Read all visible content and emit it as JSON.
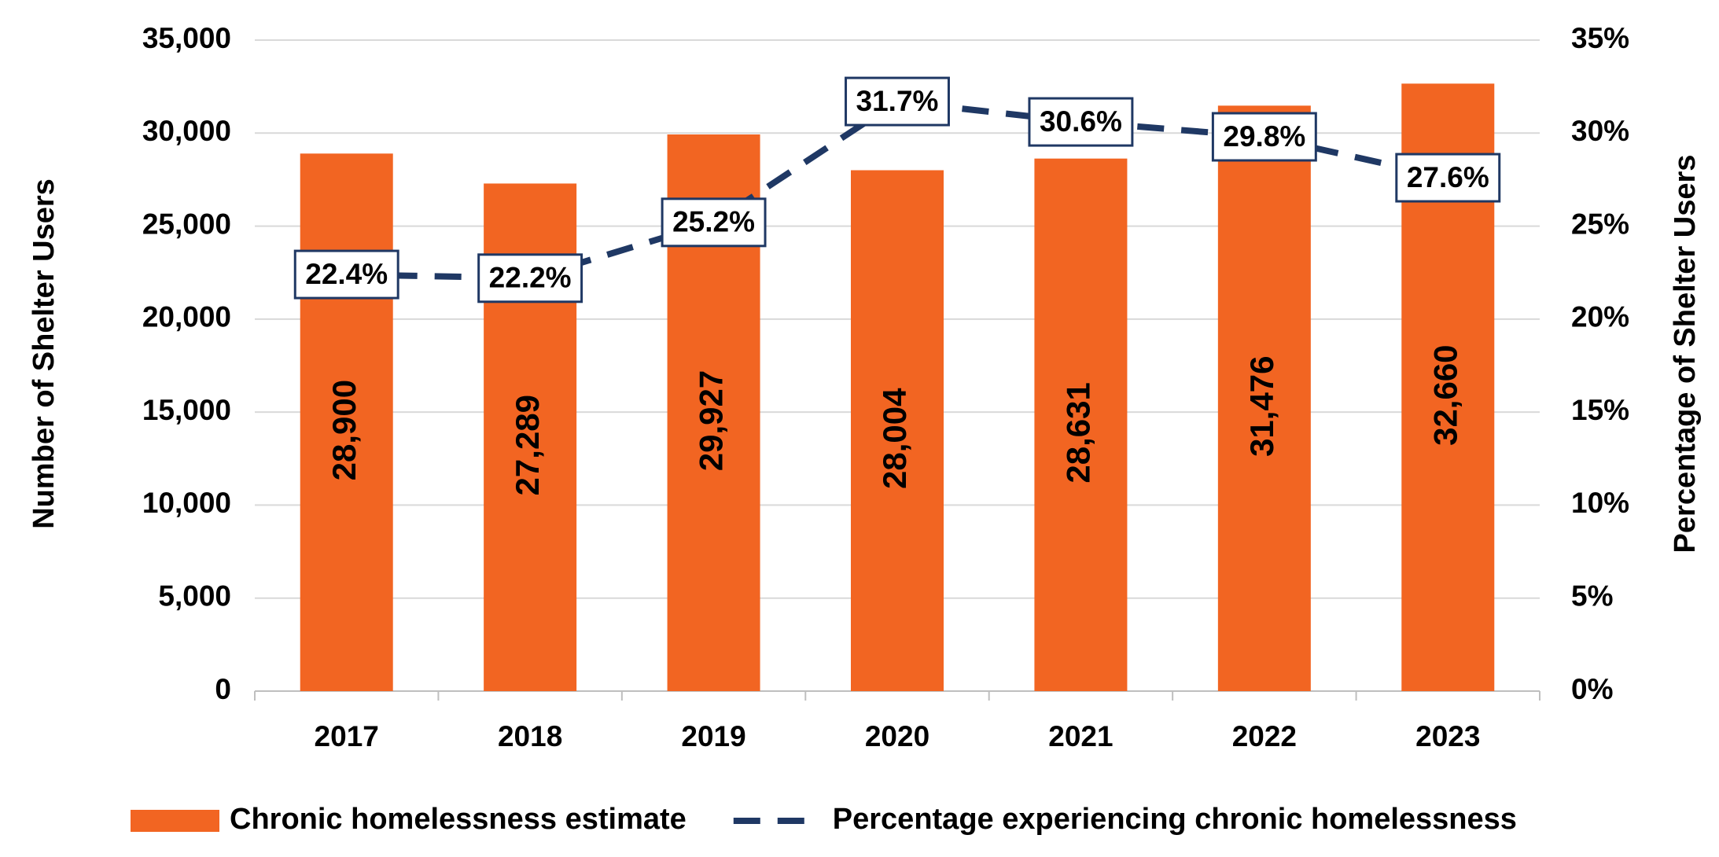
{
  "chart_data": {
    "type": "bar-line",
    "categories": [
      "2017",
      "2018",
      "2019",
      "2020",
      "2021",
      "2022",
      "2023"
    ],
    "y_label": "Number of Shelter Users",
    "y2_label": "Percentage of Shelter Users",
    "series": [
      {
        "name": "Chronic homelessness estimate",
        "type": "bar",
        "color": "#f26522",
        "values": [
          28900,
          27289,
          29927,
          28004,
          28631,
          31476,
          32660
        ],
        "value_labels": [
          "28,900",
          "27,289",
          "29,927",
          "28,004",
          "28,631",
          "31,476",
          "32,660"
        ]
      },
      {
        "name": "Percentage experiencing chronic homelessness",
        "type": "line",
        "axis": "y2",
        "color": "#1f3864",
        "dashed": true,
        "values": [
          22.4,
          22.2,
          25.2,
          31.7,
          30.6,
          29.8,
          27.6
        ],
        "value_labels": [
          "22.4%",
          "22.2%",
          "25.2%",
          "31.7%",
          "30.6%",
          "29.8%",
          "27.6%"
        ]
      }
    ],
    "ylim": [
      0,
      35000
    ],
    "yticks": [
      0,
      {
        "value": 5000,
        "label": "5,000"
      },
      {
        "value": 10000,
        "label": "10,000"
      },
      {
        "value": 15000,
        "label": "15,000"
      },
      {
        "value": 20000,
        "label": "20,000"
      },
      {
        "value": 25000,
        "label": "25,000"
      },
      {
        "value": 30000,
        "label": "30,000"
      },
      {
        "value": 35000,
        "label": "35,000"
      }
    ],
    "y2lim": [
      0,
      35
    ],
    "y2ticks": [
      {
        "value": 0,
        "label": "0%"
      },
      {
        "value": 5,
        "label": "5%"
      },
      {
        "value": 10,
        "label": "10%"
      },
      {
        "value": 15,
        "label": "15%"
      },
      {
        "value": 20,
        "label": "20%"
      },
      {
        "value": 25,
        "label": "25%"
      },
      {
        "value": 30,
        "label": "30%"
      },
      {
        "value": 35,
        "label": "35%"
      }
    ],
    "grid": true,
    "legend": "bottom"
  }
}
